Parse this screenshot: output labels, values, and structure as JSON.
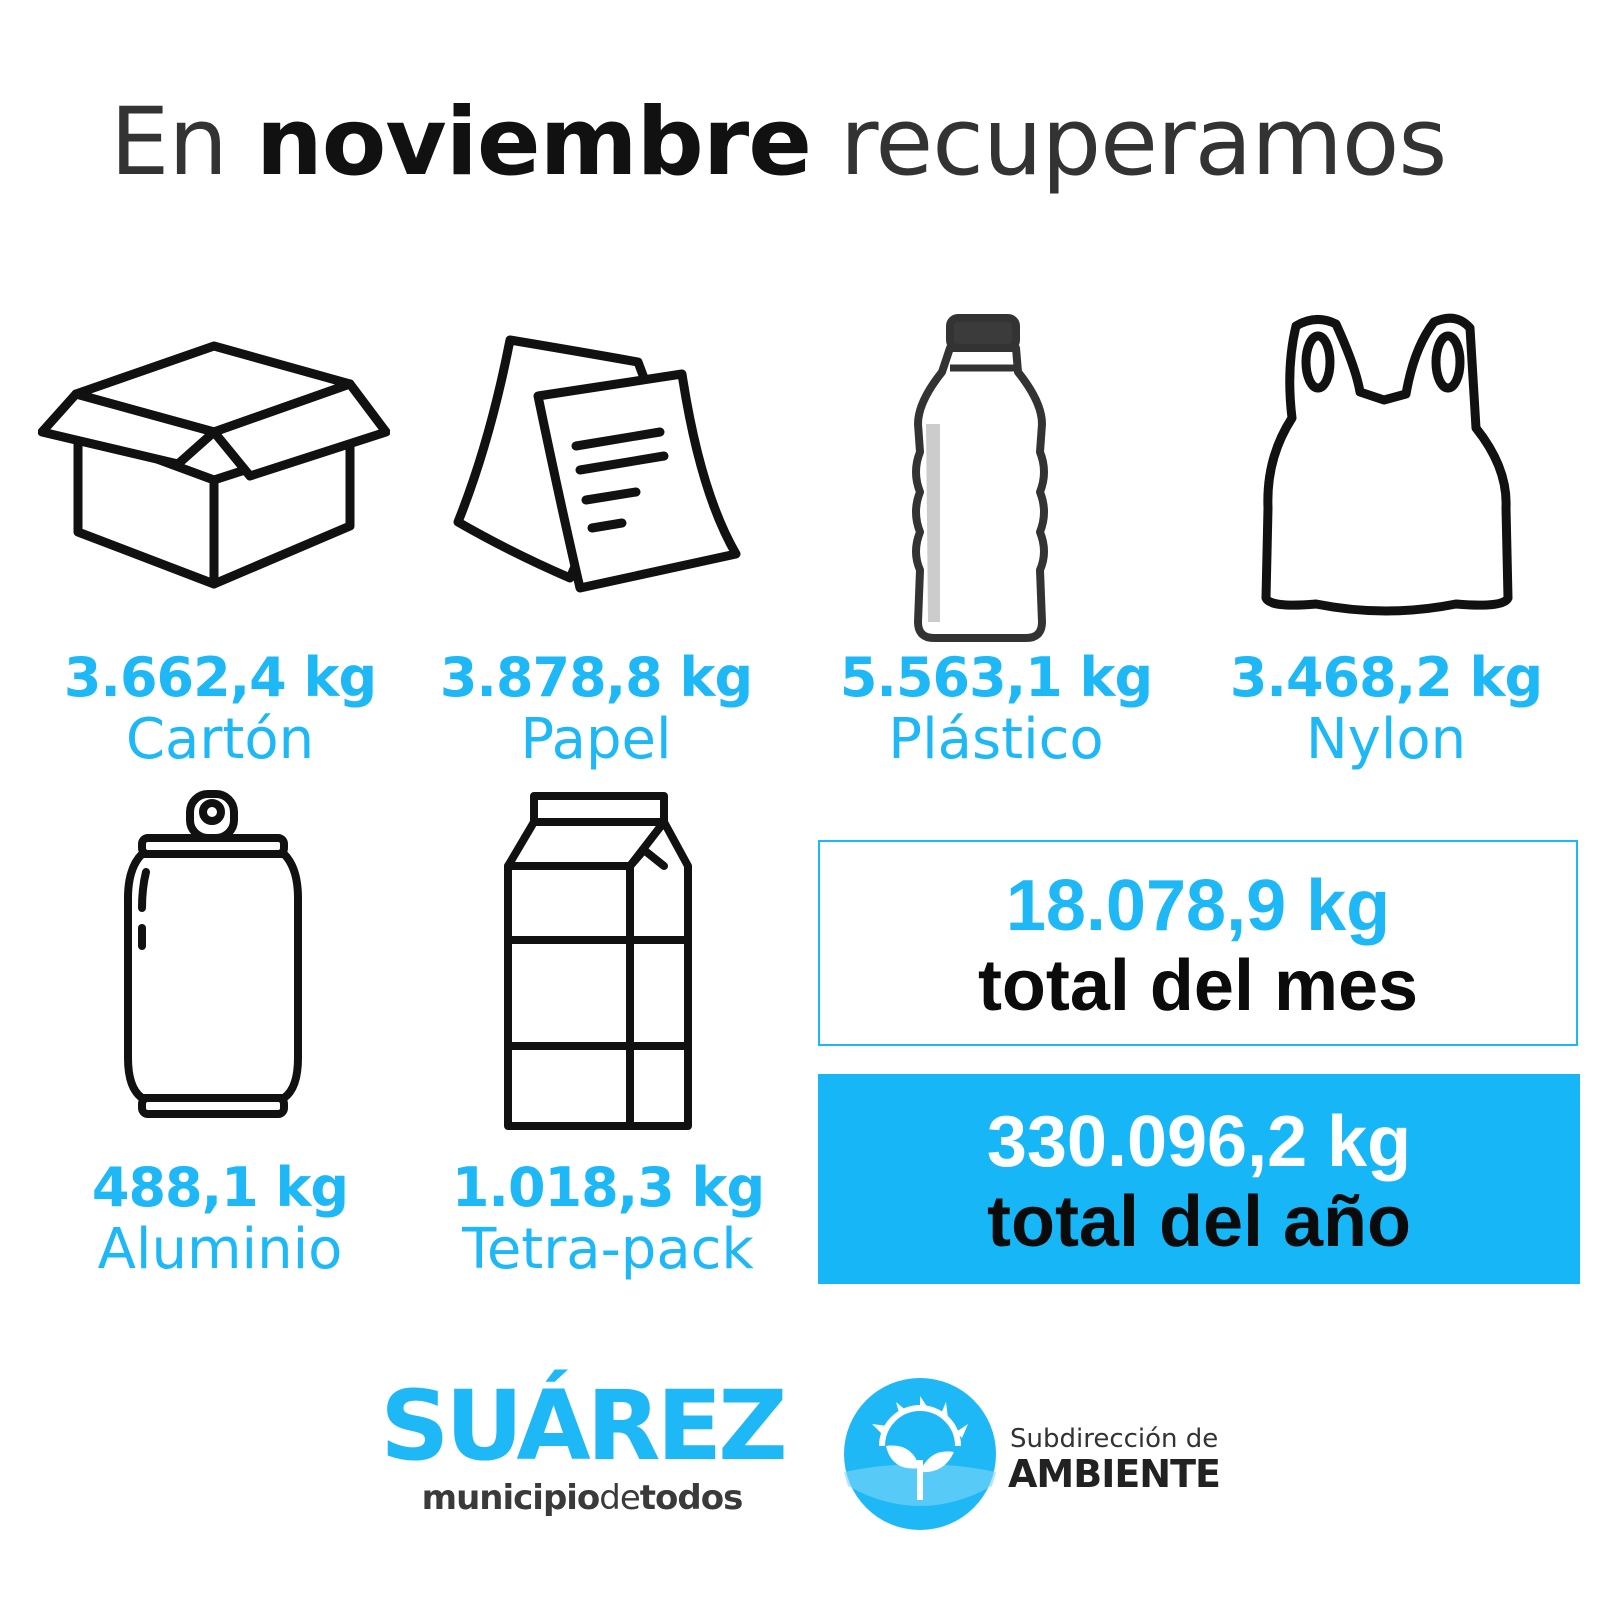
{
  "title": {
    "word1": "En",
    "word2": "noviembre",
    "word3": "recuperamos"
  },
  "items": [
    {
      "amount": "3.662,4 kg",
      "material": "Cartón",
      "icon": "box-icon"
    },
    {
      "amount": "3.878,8 kg",
      "material": "Papel",
      "icon": "paper-icon"
    },
    {
      "amount": "5.563,1 kg",
      "material": "Plástico",
      "icon": "bottle-icon"
    },
    {
      "amount": "3.468,2 kg",
      "material": "Nylon",
      "icon": "bag-icon"
    },
    {
      "amount": "488,1 kg",
      "material": "Aluminio",
      "icon": "can-icon"
    },
    {
      "amount": "1.018,3 kg",
      "material": "Tetra-pack",
      "icon": "carton-icon"
    }
  ],
  "totals": {
    "month": {
      "amount": "18.078,9 kg",
      "caption": "total del mes"
    },
    "year": {
      "amount": "330.096,2 kg",
      "caption": "total del año"
    }
  },
  "footer": {
    "brand": "SUÁREZ",
    "tagline_a": "municipio",
    "tagline_b": "de",
    "tagline_c": "todos",
    "ambiente_sub": "Subdirección de",
    "ambiente_name": "AMBIENTE"
  },
  "colors": {
    "accent": "#1db8f5",
    "text_dark": "#111111",
    "text_grey": "#333333"
  }
}
